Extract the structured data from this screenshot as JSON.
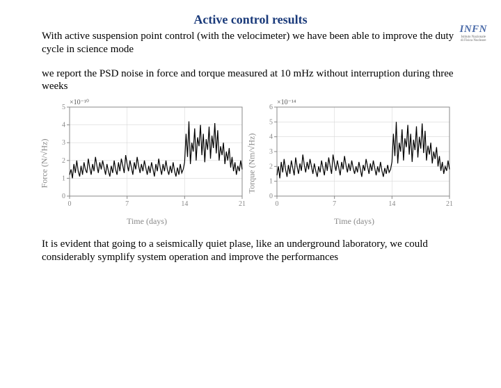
{
  "title": "Active control results",
  "para1": "With active suspension point control (with the velocimeter) we have been able to improve the duty cycle in science mode",
  "para2": "we report the PSD noise in force and torque measured at 10 mHz without interruption during three weeks",
  "para3": "It is evident that going to a seismically quiet plase, like an underground laboratory, we could considerably symplify system operation and improve the performances",
  "logo": {
    "main": "INFN",
    "sub1": "Istituto Nazionale",
    "sub2": "di Fisica Nucleare"
  },
  "chart_left": {
    "type": "line",
    "ylabel": "Force (N/√Hz)",
    "xlabel": "Time (days)",
    "exponent": "×10⁻¹⁰",
    "xlim": [
      0,
      21
    ],
    "xticks": [
      0,
      7,
      14,
      21
    ],
    "ylim": [
      0,
      5
    ],
    "yticks": [
      0,
      1,
      2,
      3,
      4,
      5
    ],
    "line_color": "#000000",
    "line_width": 1.2,
    "grid_color": "#d8d8d8",
    "background_color": "#ffffff",
    "tick_color": "#888888",
    "values": [
      1.2,
      1.5,
      1.0,
      1.8,
      1.3,
      2.0,
      1.4,
      1.1,
      1.7,
      1.2,
      1.9,
      1.5,
      1.3,
      2.1,
      1.6,
      1.2,
      1.8,
      1.4,
      2.2,
      1.7,
      1.3,
      1.9,
      1.5,
      2.0,
      1.6,
      1.2,
      1.8,
      1.4,
      1.1,
      1.7,
      1.3,
      2.0,
      1.5,
      1.2,
      1.9,
      1.4,
      2.1,
      1.7,
      1.3,
      2.3,
      1.8,
      1.4,
      2.0,
      1.6,
      1.2,
      1.9,
      1.5,
      2.2,
      1.7,
      1.3,
      1.8,
      1.4,
      2.0,
      1.6,
      1.2,
      1.7,
      1.3,
      1.9,
      1.5,
      1.1,
      1.8,
      1.4,
      2.1,
      1.6,
      1.2,
      1.8,
      1.4,
      2.0,
      1.5,
      1.2,
      1.7,
      1.3,
      1.9,
      1.4,
      1.1,
      1.6,
      1.2,
      1.8,
      1.3,
      1.5,
      1.9,
      3.5,
      2.2,
      4.2,
      1.8,
      3.0,
      2.5,
      3.8,
      2.0,
      3.3,
      2.8,
      4.0,
      2.3,
      3.5,
      1.9,
      3.2,
      2.6,
      3.9,
      2.1,
      3.4,
      2.7,
      4.1,
      2.4,
      3.7,
      2.0,
      2.8,
      2.3,
      3.0,
      1.8,
      2.5,
      2.0,
      2.7,
      1.6,
      2.2,
      1.4,
      1.9,
      1.2,
      1.7,
      1.4,
      2.0,
      1.5
    ]
  },
  "chart_right": {
    "type": "line",
    "ylabel": "Torque (Nm/√Hz)",
    "xlabel": "Time (days)",
    "exponent": "×10⁻¹⁴",
    "xlim": [
      0,
      21
    ],
    "xticks": [
      0,
      7,
      14,
      21
    ],
    "ylim": [
      0,
      6
    ],
    "yticks": [
      0,
      1,
      2,
      3,
      4,
      5,
      6
    ],
    "line_color": "#000000",
    "line_width": 1.2,
    "grid_color": "#d8d8d8",
    "background_color": "#ffffff",
    "tick_color": "#888888",
    "values": [
      1.4,
      2.0,
      1.2,
      2.3,
      1.6,
      2.5,
      1.8,
      1.3,
      2.1,
      1.5,
      2.4,
      1.9,
      1.4,
      2.6,
      2.0,
      1.5,
      2.2,
      1.7,
      2.8,
      2.1,
      1.6,
      2.3,
      1.8,
      2.5,
      2.0,
      1.5,
      2.2,
      1.7,
      1.3,
      2.0,
      1.6,
      2.4,
      1.9,
      1.4,
      2.3,
      1.7,
      2.6,
      2.0,
      1.5,
      2.8,
      2.2,
      1.7,
      2.4,
      1.9,
      1.4,
      2.3,
      1.8,
      2.7,
      2.1,
      1.6,
      2.2,
      1.7,
      2.4,
      1.9,
      1.5,
      2.0,
      1.6,
      2.3,
      1.8,
      1.3,
      2.1,
      1.7,
      2.5,
      2.0,
      1.5,
      2.2,
      1.7,
      2.4,
      1.9,
      1.4,
      2.0,
      1.6,
      2.3,
      1.7,
      1.3,
      1.9,
      1.5,
      2.1,
      1.6,
      1.8,
      2.3,
      4.2,
      2.7,
      5.0,
      2.2,
      3.6,
      3.0,
      4.5,
      2.4,
      3.9,
      3.3,
      4.8,
      2.8,
      4.2,
      2.3,
      3.8,
      3.1,
      4.7,
      2.6,
      4.0,
      3.2,
      4.9,
      2.9,
      4.4,
      2.4,
      3.4,
      2.8,
      3.6,
      2.2,
      3.0,
      2.5,
      3.3,
      2.0,
      2.7,
      1.7,
      2.3,
      1.5,
      2.0,
      1.7,
      2.4,
      1.8
    ]
  }
}
